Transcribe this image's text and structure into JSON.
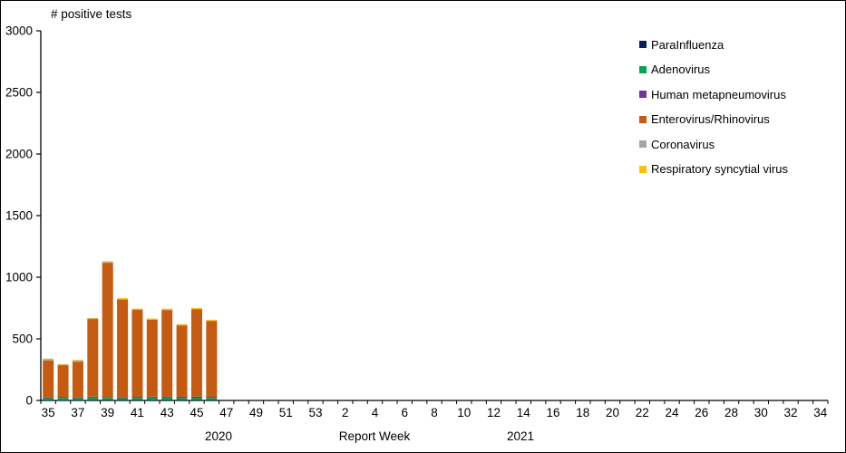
{
  "chart_data": {
    "type": "bar",
    "stacked": true,
    "title": "# positive tests",
    "x_axis": {
      "title": "Report Week",
      "year_labels": [
        "2020",
        "2021"
      ],
      "tick_labels": [
        "35",
        "37",
        "39",
        "41",
        "43",
        "45",
        "47",
        "49",
        "51",
        "53",
        "2",
        "4",
        "6",
        "8",
        "10",
        "12",
        "14",
        "16",
        "18",
        "20",
        "22",
        "24",
        "26",
        "28",
        "30",
        "32",
        "34"
      ],
      "weeks_total": 53
    },
    "y_axis": {
      "ticks": [
        0,
        500,
        1000,
        1500,
        2000,
        2500,
        3000
      ],
      "range": [
        0,
        3000
      ]
    },
    "grid": false,
    "legend_position": "right-top",
    "categories": [
      "35",
      "36",
      "37",
      "38",
      "39",
      "40",
      "41",
      "42",
      "43",
      "44",
      "45",
      "46"
    ],
    "series": [
      {
        "name": "ParaInfluenza",
        "color": "#002060",
        "values": [
          2,
          2,
          2,
          3,
          3,
          3,
          3,
          3,
          3,
          3,
          3,
          3
        ]
      },
      {
        "name": "Adenovirus",
        "color": "#00A550",
        "values": [
          16,
          19,
          16,
          22,
          18,
          15,
          18,
          20,
          20,
          17,
          19,
          18
        ]
      },
      {
        "name": "Human metapneumovirus",
        "color": "#7030A0",
        "values": [
          5,
          5,
          5,
          6,
          6,
          6,
          8,
          8,
          9,
          10,
          9,
          8
        ]
      },
      {
        "name": "Enterovirus/Rhinovirus",
        "color": "#C55A11",
        "values": [
          300,
          260,
          290,
          630,
          1090,
          795,
          706,
          624,
          702,
          579,
          708,
          615
        ]
      },
      {
        "name": "Coronavirus",
        "color": "#A6A6A6",
        "values": [
          12,
          4,
          12,
          4,
          5,
          4,
          4,
          4,
          4,
          4,
          4,
          4
        ]
      },
      {
        "name": "Respiratory syncytial virus",
        "color": "#FFC000",
        "values": [
          5,
          5,
          5,
          5,
          8,
          7,
          6,
          6,
          7,
          7,
          7,
          7
        ]
      }
    ],
    "totals_by_week": [
      340,
      295,
      330,
      670,
      1130,
      830,
      745,
      665,
      745,
      620,
      750,
      655
    ]
  }
}
